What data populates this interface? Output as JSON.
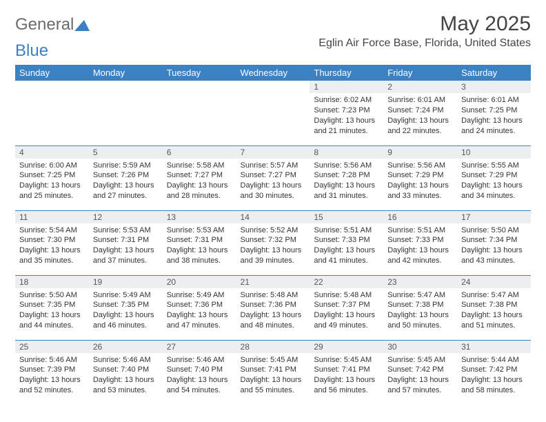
{
  "logo": {
    "word1": "General",
    "word2": "Blue",
    "text_color": "#6b6b6b",
    "accent_color": "#3b7fc4"
  },
  "title": "May 2025",
  "location": "Eglin Air Force Base, Florida, United States",
  "colors": {
    "header_bg": "#3b82c4",
    "header_text": "#ffffff",
    "daynum_bg": "#eceff1",
    "row_border": "#3b82c4",
    "body_text": "#333333",
    "page_bg": "#ffffff"
  },
  "weekdays": [
    "Sunday",
    "Monday",
    "Tuesday",
    "Wednesday",
    "Thursday",
    "Friday",
    "Saturday"
  ],
  "weeks": [
    [
      {
        "empty": true
      },
      {
        "empty": true
      },
      {
        "empty": true
      },
      {
        "empty": true
      },
      {
        "day": "1",
        "sunrise": "Sunrise: 6:02 AM",
        "sunset": "Sunset: 7:23 PM",
        "daylight": "Daylight: 13 hours and 21 minutes."
      },
      {
        "day": "2",
        "sunrise": "Sunrise: 6:01 AM",
        "sunset": "Sunset: 7:24 PM",
        "daylight": "Daylight: 13 hours and 22 minutes."
      },
      {
        "day": "3",
        "sunrise": "Sunrise: 6:01 AM",
        "sunset": "Sunset: 7:25 PM",
        "daylight": "Daylight: 13 hours and 24 minutes."
      }
    ],
    [
      {
        "day": "4",
        "sunrise": "Sunrise: 6:00 AM",
        "sunset": "Sunset: 7:25 PM",
        "daylight": "Daylight: 13 hours and 25 minutes."
      },
      {
        "day": "5",
        "sunrise": "Sunrise: 5:59 AM",
        "sunset": "Sunset: 7:26 PM",
        "daylight": "Daylight: 13 hours and 27 minutes."
      },
      {
        "day": "6",
        "sunrise": "Sunrise: 5:58 AM",
        "sunset": "Sunset: 7:27 PM",
        "daylight": "Daylight: 13 hours and 28 minutes."
      },
      {
        "day": "7",
        "sunrise": "Sunrise: 5:57 AM",
        "sunset": "Sunset: 7:27 PM",
        "daylight": "Daylight: 13 hours and 30 minutes."
      },
      {
        "day": "8",
        "sunrise": "Sunrise: 5:56 AM",
        "sunset": "Sunset: 7:28 PM",
        "daylight": "Daylight: 13 hours and 31 minutes."
      },
      {
        "day": "9",
        "sunrise": "Sunrise: 5:56 AM",
        "sunset": "Sunset: 7:29 PM",
        "daylight": "Daylight: 13 hours and 33 minutes."
      },
      {
        "day": "10",
        "sunrise": "Sunrise: 5:55 AM",
        "sunset": "Sunset: 7:29 PM",
        "daylight": "Daylight: 13 hours and 34 minutes."
      }
    ],
    [
      {
        "day": "11",
        "sunrise": "Sunrise: 5:54 AM",
        "sunset": "Sunset: 7:30 PM",
        "daylight": "Daylight: 13 hours and 35 minutes."
      },
      {
        "day": "12",
        "sunrise": "Sunrise: 5:53 AM",
        "sunset": "Sunset: 7:31 PM",
        "daylight": "Daylight: 13 hours and 37 minutes."
      },
      {
        "day": "13",
        "sunrise": "Sunrise: 5:53 AM",
        "sunset": "Sunset: 7:31 PM",
        "daylight": "Daylight: 13 hours and 38 minutes."
      },
      {
        "day": "14",
        "sunrise": "Sunrise: 5:52 AM",
        "sunset": "Sunset: 7:32 PM",
        "daylight": "Daylight: 13 hours and 39 minutes."
      },
      {
        "day": "15",
        "sunrise": "Sunrise: 5:51 AM",
        "sunset": "Sunset: 7:33 PM",
        "daylight": "Daylight: 13 hours and 41 minutes."
      },
      {
        "day": "16",
        "sunrise": "Sunrise: 5:51 AM",
        "sunset": "Sunset: 7:33 PM",
        "daylight": "Daylight: 13 hours and 42 minutes."
      },
      {
        "day": "17",
        "sunrise": "Sunrise: 5:50 AM",
        "sunset": "Sunset: 7:34 PM",
        "daylight": "Daylight: 13 hours and 43 minutes."
      }
    ],
    [
      {
        "day": "18",
        "sunrise": "Sunrise: 5:50 AM",
        "sunset": "Sunset: 7:35 PM",
        "daylight": "Daylight: 13 hours and 44 minutes."
      },
      {
        "day": "19",
        "sunrise": "Sunrise: 5:49 AM",
        "sunset": "Sunset: 7:35 PM",
        "daylight": "Daylight: 13 hours and 46 minutes."
      },
      {
        "day": "20",
        "sunrise": "Sunrise: 5:49 AM",
        "sunset": "Sunset: 7:36 PM",
        "daylight": "Daylight: 13 hours and 47 minutes."
      },
      {
        "day": "21",
        "sunrise": "Sunrise: 5:48 AM",
        "sunset": "Sunset: 7:36 PM",
        "daylight": "Daylight: 13 hours and 48 minutes."
      },
      {
        "day": "22",
        "sunrise": "Sunrise: 5:48 AM",
        "sunset": "Sunset: 7:37 PM",
        "daylight": "Daylight: 13 hours and 49 minutes."
      },
      {
        "day": "23",
        "sunrise": "Sunrise: 5:47 AM",
        "sunset": "Sunset: 7:38 PM",
        "daylight": "Daylight: 13 hours and 50 minutes."
      },
      {
        "day": "24",
        "sunrise": "Sunrise: 5:47 AM",
        "sunset": "Sunset: 7:38 PM",
        "daylight": "Daylight: 13 hours and 51 minutes."
      }
    ],
    [
      {
        "day": "25",
        "sunrise": "Sunrise: 5:46 AM",
        "sunset": "Sunset: 7:39 PM",
        "daylight": "Daylight: 13 hours and 52 minutes."
      },
      {
        "day": "26",
        "sunrise": "Sunrise: 5:46 AM",
        "sunset": "Sunset: 7:40 PM",
        "daylight": "Daylight: 13 hours and 53 minutes."
      },
      {
        "day": "27",
        "sunrise": "Sunrise: 5:46 AM",
        "sunset": "Sunset: 7:40 PM",
        "daylight": "Daylight: 13 hours and 54 minutes."
      },
      {
        "day": "28",
        "sunrise": "Sunrise: 5:45 AM",
        "sunset": "Sunset: 7:41 PM",
        "daylight": "Daylight: 13 hours and 55 minutes."
      },
      {
        "day": "29",
        "sunrise": "Sunrise: 5:45 AM",
        "sunset": "Sunset: 7:41 PM",
        "daylight": "Daylight: 13 hours and 56 minutes."
      },
      {
        "day": "30",
        "sunrise": "Sunrise: 5:45 AM",
        "sunset": "Sunset: 7:42 PM",
        "daylight": "Daylight: 13 hours and 57 minutes."
      },
      {
        "day": "31",
        "sunrise": "Sunrise: 5:44 AM",
        "sunset": "Sunset: 7:42 PM",
        "daylight": "Daylight: 13 hours and 58 minutes."
      }
    ]
  ]
}
